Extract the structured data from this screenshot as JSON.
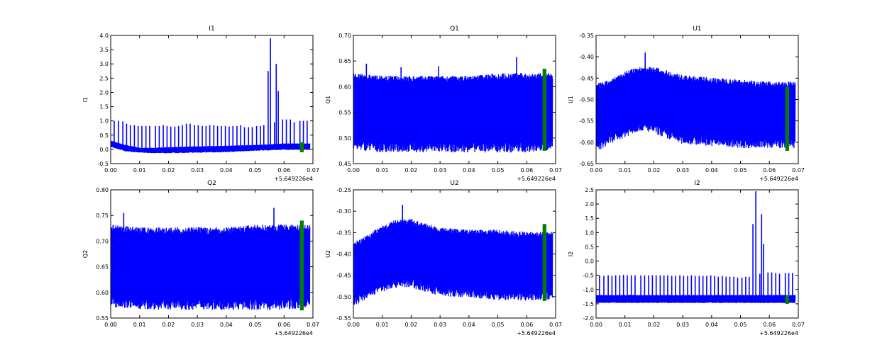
{
  "chart_data": [
    {
      "type": "line",
      "title": "I1",
      "ylabel": "I1",
      "xlim": [
        0.0,
        0.07
      ],
      "ylim": [
        -0.5,
        4.0
      ],
      "yticks": [
        "-0.5",
        "0.0",
        "0.5",
        "1.0",
        "1.5",
        "2.0",
        "2.5",
        "3.0",
        "3.5",
        "4.0"
      ],
      "xticks": [
        "0.00",
        "0.01",
        "0.02",
        "0.03",
        "0.04",
        "0.05",
        "0.06",
        "0.07"
      ],
      "offset_label": "+5.649226e4",
      "band": {
        "x": [
          0.0,
          0.005,
          0.01,
          0.015,
          0.02,
          0.03,
          0.04,
          0.05,
          0.06,
          0.069
        ],
        "low": [
          0.1,
          -0.05,
          -0.1,
          -0.12,
          -0.12,
          -0.1,
          -0.08,
          -0.03,
          0.0,
          0.0
        ],
        "high": [
          0.3,
          0.15,
          0.05,
          0.05,
          0.07,
          0.1,
          0.12,
          0.15,
          0.2,
          0.2
        ]
      },
      "spikes": {
        "x": [
          0.0012,
          0.0027,
          0.0042,
          0.0055,
          0.0068,
          0.0082,
          0.0095,
          0.0108,
          0.0122,
          0.0135,
          0.0155,
          0.0168,
          0.0182,
          0.0195,
          0.0208,
          0.0222,
          0.0235,
          0.0248,
          0.0262,
          0.0275,
          0.029,
          0.0303,
          0.0317,
          0.033,
          0.0343,
          0.0357,
          0.037,
          0.0383,
          0.0397,
          0.041,
          0.0423,
          0.0437,
          0.045,
          0.0463,
          0.0477,
          0.049,
          0.0505,
          0.0518,
          0.053,
          0.0545,
          0.0553,
          0.0567,
          0.0573,
          0.058,
          0.0595,
          0.0608,
          0.0622,
          0.0635,
          0.0655,
          0.0667,
          0.068
        ],
        "y": [
          1.0,
          1.0,
          0.98,
          0.9,
          0.85,
          0.85,
          0.82,
          0.82,
          0.82,
          0.82,
          0.82,
          0.82,
          0.85,
          0.82,
          0.8,
          0.8,
          0.82,
          0.85,
          0.9,
          0.9,
          0.85,
          0.85,
          0.82,
          0.82,
          0.85,
          0.85,
          0.82,
          0.82,
          0.82,
          0.8,
          0.82,
          0.82,
          0.85,
          0.78,
          0.78,
          0.78,
          0.82,
          0.82,
          0.85,
          2.75,
          3.9,
          0.95,
          3.0,
          2.05,
          1.05,
          1.05,
          1.05,
          0.95,
          1.0,
          1.0,
          1.0
        ]
      },
      "green": {
        "x": [
          0.0655,
          0.0668
        ],
        "y": [
          -0.1,
          0.25
        ]
      }
    },
    {
      "type": "line",
      "title": "Q1",
      "ylabel": "Q1",
      "xlim": [
        0.0,
        0.07
      ],
      "ylim": [
        0.45,
        0.7
      ],
      "yticks": [
        "0.45",
        "0.50",
        "0.55",
        "0.60",
        "0.65",
        "0.70"
      ],
      "xticks": [
        "0.00",
        "0.01",
        "0.02",
        "0.03",
        "0.04",
        "0.05",
        "0.06",
        "0.07"
      ],
      "offset_label": "+5.649226e4",
      "band": {
        "x": [
          0.0,
          0.01,
          0.02,
          0.03,
          0.04,
          0.05,
          0.06,
          0.069
        ],
        "low": [
          0.49,
          0.485,
          0.485,
          0.485,
          0.485,
          0.485,
          0.485,
          0.49
        ],
        "high": [
          0.62,
          0.615,
          0.615,
          0.615,
          0.615,
          0.62,
          0.62,
          0.62
        ]
      },
      "spikes": {
        "x": [
          0.0045,
          0.0165,
          0.0295,
          0.0565
        ],
        "y": [
          0.645,
          0.638,
          0.64,
          0.658
        ]
      },
      "green": {
        "x": [
          0.0655,
          0.0668
        ],
        "y": [
          0.475,
          0.635
        ]
      }
    },
    {
      "type": "line",
      "title": "U1",
      "ylabel": "U1",
      "xlim": [
        0.0,
        0.07
      ],
      "ylim": [
        -0.65,
        -0.35
      ],
      "yticks": [
        "-0.65",
        "-0.60",
        "-0.55",
        "-0.50",
        "-0.45",
        "-0.40",
        "-0.35"
      ],
      "xticks": [
        "0.00",
        "0.01",
        "0.02",
        "0.03",
        "0.04",
        "0.05",
        "0.06",
        "0.07"
      ],
      "offset_label": "+5.649226e4",
      "band": {
        "x": [
          0.0,
          0.005,
          0.01,
          0.015,
          0.02,
          0.025,
          0.03,
          0.04,
          0.05,
          0.06,
          0.069
        ],
        "low": [
          -0.61,
          -0.59,
          -0.575,
          -0.56,
          -0.565,
          -0.58,
          -0.59,
          -0.595,
          -0.6,
          -0.6,
          -0.6
        ],
        "high": [
          -0.47,
          -0.46,
          -0.44,
          -0.43,
          -0.43,
          -0.44,
          -0.45,
          -0.455,
          -0.46,
          -0.465,
          -0.465
        ]
      },
      "spikes": {
        "x": [
          0.017
        ],
        "y": [
          -0.39
        ]
      },
      "green": {
        "x": [
          0.0655,
          0.0668
        ],
        "y": [
          -0.62,
          -0.47
        ]
      }
    },
    {
      "type": "line",
      "title": "Q2",
      "ylabel": "Q2",
      "xlim": [
        0.0,
        0.07
      ],
      "ylim": [
        0.55,
        0.8
      ],
      "yticks": [
        "0.55",
        "0.60",
        "0.65",
        "0.70",
        "0.75",
        "0.80"
      ],
      "xticks": [
        "0.00",
        "0.01",
        "0.02",
        "0.03",
        "0.04",
        "0.05",
        "0.06",
        "0.07"
      ],
      "offset_label": "+5.649226e4",
      "band": {
        "x": [
          0.0,
          0.01,
          0.02,
          0.03,
          0.04,
          0.05,
          0.06,
          0.069
        ],
        "low": [
          0.585,
          0.58,
          0.58,
          0.58,
          0.58,
          0.58,
          0.58,
          0.585
        ],
        "high": [
          0.725,
          0.72,
          0.72,
          0.72,
          0.72,
          0.725,
          0.725,
          0.725
        ]
      },
      "spikes": {
        "x": [
          0.0045,
          0.0565
        ],
        "y": [
          0.755,
          0.765
        ]
      },
      "green": {
        "x": [
          0.0655,
          0.0668
        ],
        "y": [
          0.565,
          0.74
        ]
      }
    },
    {
      "type": "line",
      "title": "U2",
      "ylabel": "U2",
      "xlim": [
        0.0,
        0.07
      ],
      "ylim": [
        -0.55,
        -0.25
      ],
      "yticks": [
        "-0.55",
        "-0.50",
        "-0.45",
        "-0.40",
        "-0.35",
        "-0.30",
        "-0.25"
      ],
      "xticks": [
        "0.00",
        "0.01",
        "0.02",
        "0.03",
        "0.04",
        "0.05",
        "0.06",
        "0.07"
      ],
      "offset_label": "+5.649226e4",
      "band": {
        "x": [
          0.0,
          0.005,
          0.01,
          0.015,
          0.02,
          0.025,
          0.03,
          0.04,
          0.05,
          0.06,
          0.069
        ],
        "low": [
          -0.51,
          -0.49,
          -0.475,
          -0.465,
          -0.465,
          -0.475,
          -0.485,
          -0.49,
          -0.495,
          -0.495,
          -0.495
        ],
        "high": [
          -0.38,
          -0.36,
          -0.34,
          -0.325,
          -0.325,
          -0.335,
          -0.345,
          -0.35,
          -0.35,
          -0.355,
          -0.355
        ]
      },
      "spikes": {
        "x": [
          0.017
        ],
        "y": [
          -0.285
        ]
      },
      "green": {
        "x": [
          0.0655,
          0.0668
        ],
        "y": [
          -0.51,
          -0.33
        ]
      }
    },
    {
      "type": "line",
      "title": "I2",
      "ylabel": "I2",
      "xlim": [
        0.0,
        0.07
      ],
      "ylim": [
        -2.0,
        2.5
      ],
      "yticks": [
        "-2.0",
        "-1.5",
        "-1.0",
        "-0.5",
        "0.0",
        "0.5",
        "1.0",
        "1.5",
        "2.0",
        "2.5"
      ],
      "xticks": [
        "0.00",
        "0.01",
        "0.02",
        "0.03",
        "0.04",
        "0.05",
        "0.06",
        "0.07"
      ],
      "offset_label": "+5.649226e4",
      "band": {
        "x": [
          0.0,
          0.01,
          0.02,
          0.03,
          0.04,
          0.05,
          0.06,
          0.069
        ],
        "low": [
          -1.45,
          -1.45,
          -1.45,
          -1.45,
          -1.45,
          -1.45,
          -1.45,
          -1.45
        ],
        "high": [
          -1.2,
          -1.2,
          -1.2,
          -1.2,
          -1.2,
          -1.2,
          -1.2,
          -1.2
        ]
      },
      "spikes": {
        "x": [
          0.0012,
          0.0027,
          0.0042,
          0.0055,
          0.0068,
          0.0082,
          0.0095,
          0.0108,
          0.0122,
          0.0135,
          0.0155,
          0.0168,
          0.0182,
          0.0195,
          0.0208,
          0.0222,
          0.0235,
          0.0248,
          0.0262,
          0.0275,
          0.029,
          0.0303,
          0.0317,
          0.033,
          0.0343,
          0.0357,
          0.037,
          0.0383,
          0.0397,
          0.041,
          0.0423,
          0.0437,
          0.045,
          0.0463,
          0.0477,
          0.049,
          0.0505,
          0.0518,
          0.053,
          0.0543,
          0.0553,
          0.0567,
          0.0573,
          0.058,
          0.0595,
          0.0608,
          0.0622,
          0.0635,
          0.0655,
          0.0667,
          0.068
        ],
        "y": [
          -0.5,
          -0.52,
          -0.5,
          -0.52,
          -0.5,
          -0.5,
          -0.48,
          -0.5,
          -0.5,
          -0.5,
          -0.5,
          -0.5,
          -0.5,
          -0.5,
          -0.5,
          -0.5,
          -0.5,
          -0.5,
          -0.52,
          -0.52,
          -0.5,
          -0.52,
          -0.52,
          -0.5,
          -0.52,
          -0.52,
          -0.52,
          -0.52,
          -0.5,
          -0.52,
          -0.55,
          -0.52,
          -0.55,
          -0.55,
          -0.55,
          -0.58,
          -0.58,
          -0.55,
          -0.55,
          1.3,
          2.45,
          -0.45,
          1.65,
          0.6,
          -0.4,
          -0.4,
          -0.42,
          -0.45,
          -0.42,
          -0.42,
          -0.42
        ]
      },
      "green": {
        "x": [
          0.0655,
          0.0668
        ],
        "y": [
          -1.5,
          -1.2
        ]
      }
    }
  ],
  "colors": {
    "series": "#0000ff",
    "highlight": "#008000"
  }
}
